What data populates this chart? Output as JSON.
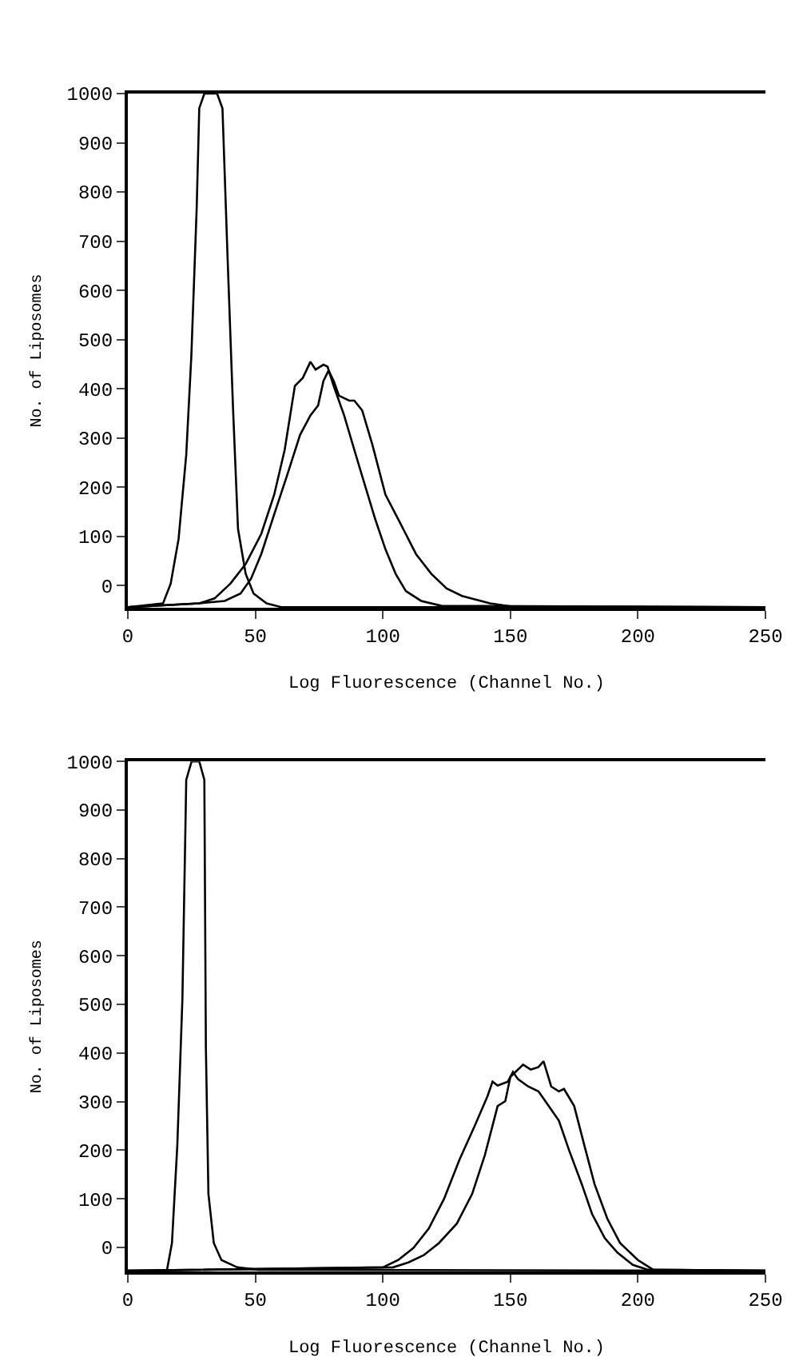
{
  "chart_data": [
    {
      "type": "line",
      "xlabel": "Log Fluorescence (Channel No.)",
      "ylabel": "No. of Liposomes",
      "xlim": [
        0,
        250
      ],
      "ylim": [
        -45,
        1000
      ],
      "xticks": [
        0,
        50,
        100,
        150,
        200,
        250
      ],
      "yticks": [
        0,
        100,
        200,
        300,
        400,
        500,
        600,
        700,
        800,
        900,
        1000
      ],
      "grid": false,
      "marker": "none",
      "line_style": "solid",
      "series": [
        {
          "color": "#000000",
          "x": [
            0,
            13.8,
            16.8,
            19.9,
            22.9,
            24.9,
            27,
            28,
            30,
            35,
            37.1,
            39.1,
            41.2,
            43.2,
            46.2,
            49.3,
            54.4,
            60.4,
            250
          ],
          "values": [
            -44,
            -36,
            4,
            95,
            266,
            467,
            768,
            970,
            1000,
            1000,
            970,
            668,
            366,
            115,
            24,
            -16,
            -36,
            -44,
            -44
          ]
        },
        {
          "color": "#000000",
          "x": [
            0,
            28,
            34,
            40.2,
            46.2,
            52.3,
            57.4,
            61.5,
            65.5,
            68.6,
            71.6,
            73.6,
            76.7,
            78.3,
            80.7,
            84.8,
            88.8,
            92.9,
            97,
            101,
            105,
            109,
            115,
            123,
            250
          ],
          "values": [
            -44,
            -36,
            -26,
            4,
            44,
            105,
            185,
            276,
            406,
            422,
            455,
            439,
            449,
            445,
            406,
            346,
            276,
            205,
            135,
            74,
            24,
            -11,
            -31,
            -41,
            -44
          ]
        },
        {
          "color": "#000000",
          "x": [
            0,
            28,
            38,
            44.2,
            48.3,
            52.3,
            57.4,
            62.5,
            67.5,
            71.6,
            74.6,
            76.7,
            78.7,
            80.7,
            82.8,
            86.8,
            88.8,
            91.9,
            95.9,
            101,
            107,
            113,
            119,
            125,
            131,
            142,
            150,
            250
          ],
          "values": [
            -44,
            -36,
            -31,
            -16,
            14,
            64,
            145,
            225,
            306,
            346,
            366,
            416,
            437,
            416,
            386,
            376,
            376,
            356,
            286,
            185,
            125,
            64,
            24,
            -6,
            -21,
            -36,
            -42,
            -44
          ]
        }
      ]
    },
    {
      "type": "line",
      "xlabel": "Log Fluorescence (Channel No.)",
      "ylabel": "No. of Liposomes",
      "xlim": [
        0,
        250
      ],
      "ylim": [
        -50,
        1000
      ],
      "xticks": [
        0,
        50,
        100,
        150,
        200,
        250
      ],
      "yticks": [
        0,
        100,
        200,
        300,
        400,
        500,
        600,
        700,
        800,
        900,
        1000
      ],
      "grid": false,
      "marker": "none",
      "line_style": "solid",
      "series": [
        {
          "color": "#000000",
          "x": [
            0,
            15.3,
            17.3,
            19.4,
            21.4,
            22.9,
            25,
            28,
            30,
            30.6,
            31.6,
            33.7,
            36.7,
            42.9,
            51,
            250
          ],
          "values": [
            -48,
            -48,
            9,
            210,
            512,
            962,
            1000,
            1000,
            962,
            411,
            110,
            9,
            -26,
            -41,
            -46,
            -48
          ]
        },
        {
          "color": "#000000",
          "x": [
            0,
            100,
            106,
            112,
            118,
            124,
            130,
            136,
            141,
            143,
            145,
            149,
            151,
            153,
            157,
            161,
            165,
            169,
            173,
            178,
            182,
            187,
            192,
            198,
            204,
            250
          ],
          "values": [
            -48,
            -41,
            -26,
            -1,
            39,
            100,
            180,
            250,
            311,
            341,
            333,
            341,
            361,
            346,
            331,
            321,
            291,
            261,
            200,
            130,
            69,
            19,
            -11,
            -36,
            -46,
            -48
          ]
        },
        {
          "color": "#000000",
          "x": [
            0,
            104,
            110,
            116,
            122,
            129,
            135,
            140,
            145,
            148,
            150,
            152,
            155,
            158,
            161,
            163,
            166,
            169,
            171,
            175,
            179,
            183,
            188,
            193,
            200,
            206,
            250
          ],
          "values": [
            -48,
            -41,
            -31,
            -16,
            9,
            49,
            110,
            190,
            291,
            301,
            351,
            361,
            376,
            366,
            371,
            383,
            331,
            321,
            326,
            291,
            210,
            130,
            59,
            9,
            -26,
            -46,
            -48
          ]
        }
      ]
    }
  ]
}
